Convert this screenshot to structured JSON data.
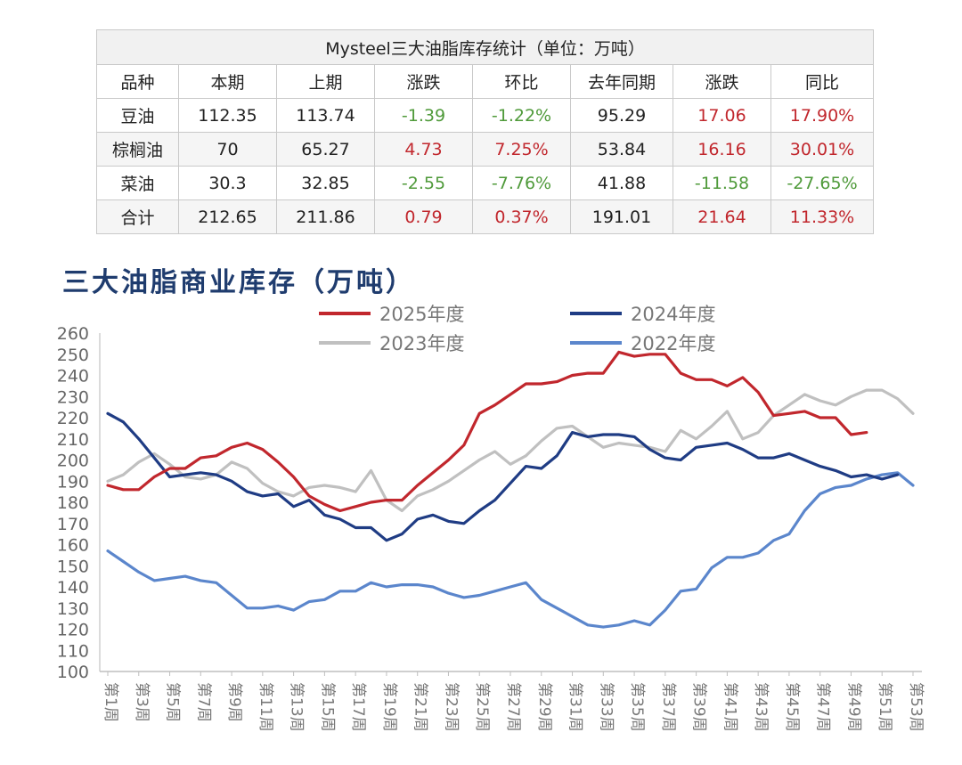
{
  "table": {
    "title": "Mysteel三大油脂库存统计（单位：万吨）",
    "headers": [
      "品种",
      "本期",
      "上期",
      "涨跌",
      "环比",
      "去年同期",
      "涨跌",
      "同比"
    ],
    "rows": [
      {
        "name": "豆油",
        "cur": "112.35",
        "prev": "113.74",
        "chg": "-1.39",
        "chg_color": "neg",
        "mom": "-1.22%",
        "mom_color": "neg",
        "ly": "95.29",
        "ychg": "17.06",
        "ychg_color": "pos",
        "yoy": "17.90%",
        "yoy_color": "pos"
      },
      {
        "name": "棕榈油",
        "cur": "70",
        "prev": "65.27",
        "chg": "4.73",
        "chg_color": "pos",
        "mom": "7.25%",
        "mom_color": "pos",
        "ly": "53.84",
        "ychg": "16.16",
        "ychg_color": "pos",
        "yoy": "30.01%",
        "yoy_color": "pos"
      },
      {
        "name": "菜油",
        "cur": "30.3",
        "prev": "32.85",
        "chg": "-2.55",
        "chg_color": "neg",
        "mom": "-7.76%",
        "mom_color": "neg",
        "ly": "41.88",
        "ychg": "-11.58",
        "ychg_color": "neg",
        "yoy": "-27.65%",
        "yoy_color": "neg"
      },
      {
        "name": "合计",
        "cur": "212.65",
        "prev": "211.86",
        "chg": "0.79",
        "chg_color": "pos",
        "mom": "0.37%",
        "mom_color": "pos",
        "ly": "191.01",
        "ychg": "21.64",
        "ychg_color": "pos",
        "yoy": "11.33%",
        "yoy_color": "pos"
      }
    ]
  },
  "chart_data": {
    "type": "line",
    "title": "三大油脂商业库存（万吨）",
    "ylim": [
      100,
      260
    ],
    "yticks": [
      100,
      110,
      120,
      130,
      140,
      150,
      160,
      170,
      180,
      190,
      200,
      210,
      220,
      230,
      240,
      250,
      260
    ],
    "x_count": 53,
    "xtick_labels": [
      "第1周",
      "第3周",
      "第5周",
      "第7周",
      "第9周",
      "第11周",
      "第13周",
      "第15周",
      "第17周",
      "第19周",
      "第21周",
      "第23周",
      "第25周",
      "第27周",
      "第29周",
      "第31周",
      "第33周",
      "第35周",
      "第37周",
      "第39周",
      "第41周",
      "第43周",
      "第45周",
      "第47周",
      "第49周",
      "第51周",
      "第53周"
    ],
    "legend_placement": "top",
    "series": [
      {
        "name": "2025年度",
        "color": "#c1272d",
        "values": [
          188,
          186,
          186,
          192,
          196,
          196,
          201,
          202,
          206,
          208,
          205,
          199,
          192,
          183,
          179,
          176,
          178,
          180,
          181,
          181,
          188,
          194,
          200,
          207,
          222,
          226,
          231,
          236,
          236,
          237,
          240,
          241,
          241,
          251,
          249,
          250,
          250,
          241,
          238,
          238,
          235,
          239,
          232,
          221,
          222,
          223,
          220,
          220,
          212,
          213
        ]
      },
      {
        "name": "2024年度",
        "color": "#1f3c84",
        "values": [
          222,
          218,
          210,
          201,
          192,
          193,
          194,
          193,
          190,
          185,
          183,
          184,
          178,
          181,
          174,
          172,
          168,
          168,
          162,
          165,
          172,
          174,
          171,
          170,
          176,
          181,
          189,
          197,
          196,
          202,
          213,
          211,
          212,
          212,
          211,
          205,
          201,
          200,
          206,
          207,
          208,
          205,
          201,
          201,
          203,
          200,
          197,
          195,
          192,
          193,
          191,
          193
        ]
      },
      {
        "name": "2023年度",
        "color": "#c0c0c0",
        "values": [
          190,
          193,
          199,
          203,
          198,
          192,
          191,
          193,
          199,
          196,
          189,
          185,
          183,
          187,
          188,
          187,
          185,
          195,
          181,
          176,
          183,
          186,
          190,
          195,
          200,
          204,
          198,
          202,
          209,
          215,
          216,
          211,
          206,
          208,
          207,
          206,
          204,
          214,
          210,
          216,
          223,
          210,
          213,
          221,
          226,
          231,
          228,
          226,
          230,
          233,
          233,
          229,
          222
        ]
      },
      {
        "name": "2022年度",
        "color": "#5b86cc",
        "values": [
          157,
          152,
          147,
          143,
          144,
          145,
          143,
          142,
          136,
          130,
          130,
          131,
          129,
          133,
          134,
          138,
          138,
          142,
          140,
          141,
          141,
          140,
          137,
          135,
          136,
          138,
          140,
          142,
          134,
          130,
          126,
          122,
          121,
          122,
          124,
          122,
          129,
          138,
          139,
          149,
          154,
          154,
          156,
          162,
          165,
          176,
          184,
          187,
          188,
          191,
          193,
          194,
          188
        ]
      }
    ]
  }
}
